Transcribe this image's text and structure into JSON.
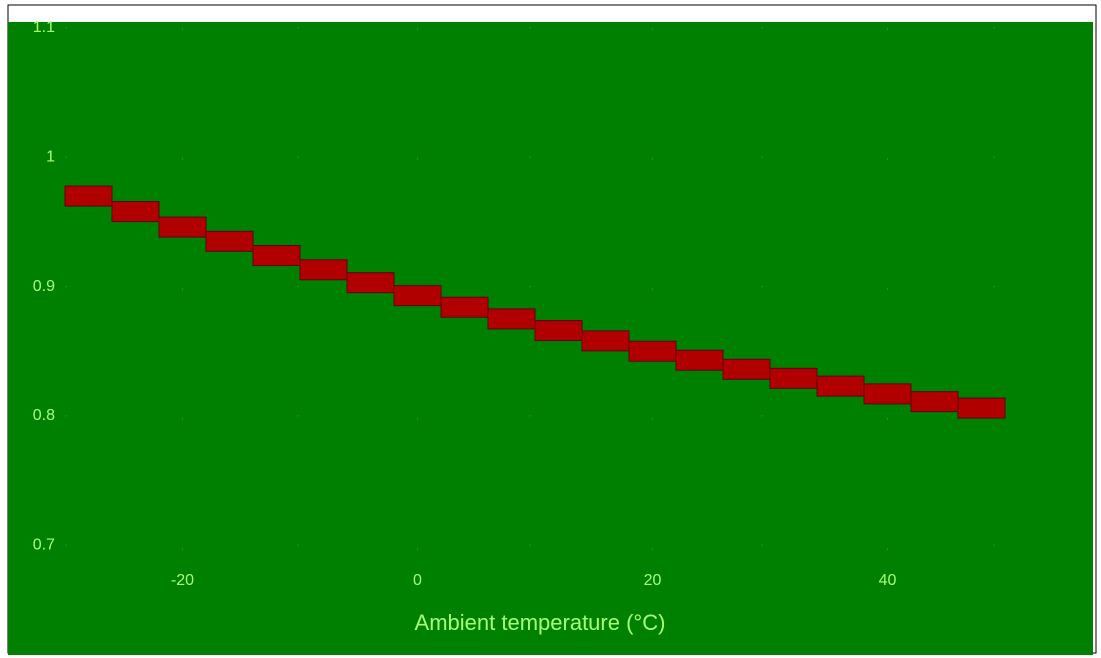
{
  "chart_data": {
    "type": "step",
    "x_label": "Ambient temperature (°C)",
    "x": [
      -30,
      -26,
      -22,
      -18,
      -14,
      -10,
      -6,
      -2,
      2,
      6,
      10,
      14,
      18,
      22,
      26,
      30,
      34,
      38,
      42,
      46
    ],
    "values": [
      0.97,
      0.958,
      0.946,
      0.935,
      0.924,
      0.913,
      0.903,
      0.893,
      0.884,
      0.875,
      0.866,
      0.858,
      0.85,
      0.843,
      0.836,
      0.829,
      0.823,
      0.817,
      0.811,
      0.806
    ],
    "color": "#b00000",
    "xlim": [
      -30,
      50
    ],
    "xticks": [
      -20,
      0,
      20,
      40
    ],
    "ylim": [
      0.68,
      1.1
    ],
    "yticks": [
      0.7,
      0.8,
      0.9,
      1.0,
      1.1
    ],
    "background": "#008000",
    "grid": true
  }
}
